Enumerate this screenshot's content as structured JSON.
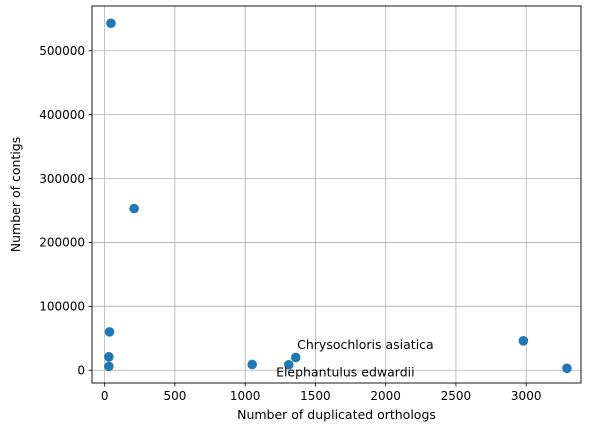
{
  "chart_data": {
    "type": "scatter",
    "title": "",
    "xlabel": "Number of duplicated orthologs",
    "ylabel": "Number of contigs",
    "xlim": [
      -90,
      3390
    ],
    "ylim": [
      -20000,
      570000
    ],
    "xticks": [
      0,
      500,
      1000,
      1500,
      2000,
      2500,
      3000
    ],
    "yticks": [
      0,
      100000,
      200000,
      300000,
      400000,
      500000
    ],
    "grid": true,
    "marker_color": "#1f77b4",
    "points": [
      {
        "x": 45,
        "y": 543000
      },
      {
        "x": 210,
        "y": 253000
      },
      {
        "x": 35,
        "y": 60000
      },
      {
        "x": 30,
        "y": 21000
      },
      {
        "x": 30,
        "y": 6000
      },
      {
        "x": 1050,
        "y": 9000
      },
      {
        "x": 1310,
        "y": 8500
      },
      {
        "x": 1360,
        "y": 20000
      },
      {
        "x": 2980,
        "y": 46000
      },
      {
        "x": 3290,
        "y": 3000
      }
    ],
    "annotations": [
      {
        "text": "Chrysochloris asiatica",
        "x": 1370,
        "y": 33000
      },
      {
        "text": "Elephantulus edwardii",
        "x": 1220,
        "y": -10000
      }
    ]
  }
}
